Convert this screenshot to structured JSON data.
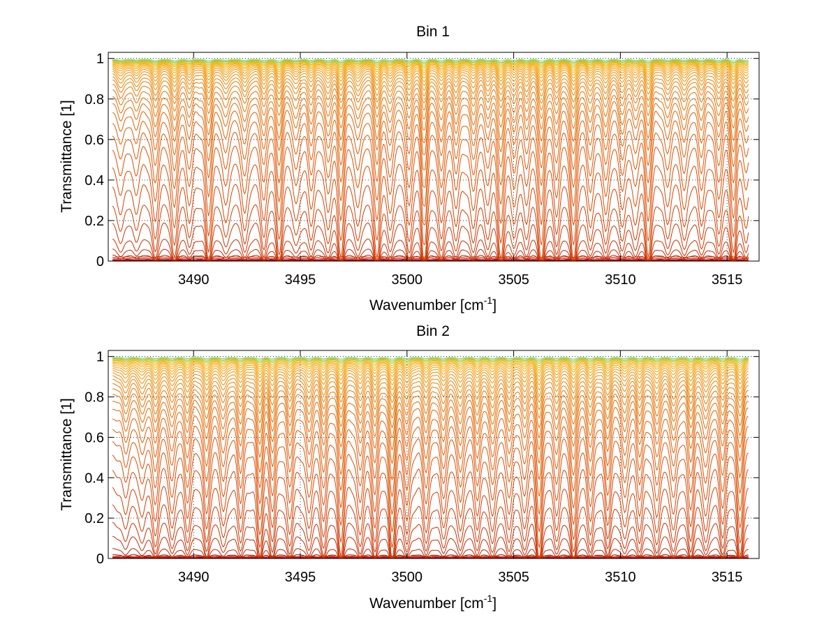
{
  "chart_data": [
    {
      "type": "line",
      "title": "Bin 1",
      "xlabel": "Wavenumber [cm",
      "xlabel_sup": "-1",
      "xlabel_end": "]",
      "ylabel": "Transmittance [1]",
      "xlim": [
        3486,
        3516.5
      ],
      "ylim": [
        0,
        1.03
      ],
      "xticks": [
        3490,
        3495,
        3500,
        3505,
        3510,
        3515
      ],
      "xtick_labels": [
        "3490",
        "3495",
        "3500",
        "3505",
        "3510",
        "3515"
      ],
      "yticks": [
        0,
        0.2,
        0.4,
        0.6,
        0.8,
        1
      ],
      "ytick_labels": [
        "0",
        "0.2",
        "0.4",
        "0.6",
        "0.8",
        "1"
      ],
      "grid": true,
      "series_baselines": [
        0.0,
        0.002,
        0.005,
        0.01,
        0.018,
        0.03,
        0.06,
        0.11,
        0.19,
        0.28,
        0.38,
        0.48,
        0.57,
        0.64,
        0.7,
        0.75,
        0.79,
        0.82,
        0.85,
        0.875,
        0.895,
        0.91,
        0.925,
        0.937,
        0.947,
        0.955,
        0.962,
        0.968,
        0.973,
        0.977,
        0.981,
        0.984,
        0.987,
        0.99,
        0.992,
        0.995
      ],
      "absorption_lines": [
        {
          "x": 3486.6,
          "depth": 0.35
        },
        {
          "x": 3487.3,
          "depth": 0.3
        },
        {
          "x": 3488.2,
          "depth": 0.65
        },
        {
          "x": 3489.1,
          "depth": 0.75
        },
        {
          "x": 3489.8,
          "depth": 0.4
        },
        {
          "x": 3490.7,
          "depth": 0.78
        },
        {
          "x": 3491.5,
          "depth": 0.45
        },
        {
          "x": 3492.4,
          "depth": 0.55
        },
        {
          "x": 3493.3,
          "depth": 0.62
        },
        {
          "x": 3494.0,
          "depth": 0.85
        },
        {
          "x": 3494.8,
          "depth": 0.45
        },
        {
          "x": 3495.5,
          "depth": 0.5
        },
        {
          "x": 3496.3,
          "depth": 0.6
        },
        {
          "x": 3496.9,
          "depth": 0.88
        },
        {
          "x": 3497.7,
          "depth": 0.5
        },
        {
          "x": 3498.6,
          "depth": 0.9
        },
        {
          "x": 3499.2,
          "depth": 0.55
        },
        {
          "x": 3500.1,
          "depth": 0.7
        },
        {
          "x": 3500.8,
          "depth": 0.95
        },
        {
          "x": 3501.6,
          "depth": 0.7
        },
        {
          "x": 3502.3,
          "depth": 0.5
        },
        {
          "x": 3503.1,
          "depth": 0.55
        },
        {
          "x": 3503.8,
          "depth": 0.45
        },
        {
          "x": 3504.4,
          "depth": 0.92
        },
        {
          "x": 3505.0,
          "depth": 0.5
        },
        {
          "x": 3505.6,
          "depth": 0.45
        },
        {
          "x": 3506.3,
          "depth": 0.96
        },
        {
          "x": 3507.0,
          "depth": 0.55
        },
        {
          "x": 3507.8,
          "depth": 0.95
        },
        {
          "x": 3508.6,
          "depth": 0.5
        },
        {
          "x": 3509.3,
          "depth": 0.6
        },
        {
          "x": 3510.1,
          "depth": 0.55
        },
        {
          "x": 3510.7,
          "depth": 0.5
        },
        {
          "x": 3511.3,
          "depth": 0.85
        },
        {
          "x": 3512.2,
          "depth": 0.45
        },
        {
          "x": 3513.0,
          "depth": 0.5
        },
        {
          "x": 3513.8,
          "depth": 0.45
        },
        {
          "x": 3514.6,
          "depth": 0.6
        },
        {
          "x": 3515.3,
          "depth": 0.85
        },
        {
          "x": 3515.9,
          "depth": 0.55
        }
      ]
    },
    {
      "type": "line",
      "title": "Bin 2",
      "xlabel": "Wavenumber [cm",
      "xlabel_sup": "-1",
      "xlabel_end": "]",
      "ylabel": "Transmittance [1]",
      "xlim": [
        3486,
        3516.5
      ],
      "ylim": [
        0,
        1.03
      ],
      "xticks": [
        3490,
        3495,
        3500,
        3505,
        3510,
        3515
      ],
      "xtick_labels": [
        "3490",
        "3495",
        "3500",
        "3505",
        "3510",
        "3515"
      ],
      "yticks": [
        0,
        0.2,
        0.4,
        0.6,
        0.8,
        1
      ],
      "ytick_labels": [
        "0",
        "0.2",
        "0.4",
        "0.6",
        "0.8",
        "1"
      ],
      "grid": true,
      "series_baselines": [
        0.0,
        0.002,
        0.005,
        0.01,
        0.02,
        0.05,
        0.11,
        0.18,
        0.27,
        0.36,
        0.45,
        0.53,
        0.6,
        0.66,
        0.71,
        0.755,
        0.79,
        0.82,
        0.845,
        0.868,
        0.888,
        0.905,
        0.92,
        0.933,
        0.944,
        0.953,
        0.961,
        0.968,
        0.973,
        0.978,
        0.982,
        0.986,
        0.989,
        0.992,
        0.995
      ],
      "absorption_lines": [
        {
          "x": 3486.8,
          "depth": 0.35
        },
        {
          "x": 3487.6,
          "depth": 0.4
        },
        {
          "x": 3488.2,
          "depth": 0.6
        },
        {
          "x": 3489.0,
          "depth": 0.5
        },
        {
          "x": 3489.7,
          "depth": 0.55
        },
        {
          "x": 3490.6,
          "depth": 0.7
        },
        {
          "x": 3491.4,
          "depth": 0.5
        },
        {
          "x": 3492.2,
          "depth": 0.55
        },
        {
          "x": 3493.1,
          "depth": 0.75
        },
        {
          "x": 3493.7,
          "depth": 0.7
        },
        {
          "x": 3494.5,
          "depth": 0.6
        },
        {
          "x": 3495.4,
          "depth": 0.55
        },
        {
          "x": 3496.1,
          "depth": 0.6
        },
        {
          "x": 3496.9,
          "depth": 0.85
        },
        {
          "x": 3497.8,
          "depth": 0.6
        },
        {
          "x": 3498.5,
          "depth": 0.65
        },
        {
          "x": 3499.3,
          "depth": 0.9
        },
        {
          "x": 3500.0,
          "depth": 0.6
        },
        {
          "x": 3500.9,
          "depth": 0.55
        },
        {
          "x": 3501.7,
          "depth": 0.5
        },
        {
          "x": 3502.5,
          "depth": 0.6
        },
        {
          "x": 3503.3,
          "depth": 0.55
        },
        {
          "x": 3504.0,
          "depth": 0.6
        },
        {
          "x": 3504.8,
          "depth": 0.55
        },
        {
          "x": 3505.5,
          "depth": 0.5
        },
        {
          "x": 3506.2,
          "depth": 0.9
        },
        {
          "x": 3507.0,
          "depth": 0.5
        },
        {
          "x": 3507.8,
          "depth": 0.85
        },
        {
          "x": 3508.6,
          "depth": 0.6
        },
        {
          "x": 3509.4,
          "depth": 0.65
        },
        {
          "x": 3510.2,
          "depth": 0.55
        },
        {
          "x": 3510.9,
          "depth": 0.55
        },
        {
          "x": 3511.7,
          "depth": 0.6
        },
        {
          "x": 3512.5,
          "depth": 0.55
        },
        {
          "x": 3513.3,
          "depth": 0.65
        },
        {
          "x": 3514.0,
          "depth": 0.55
        },
        {
          "x": 3514.8,
          "depth": 0.6
        },
        {
          "x": 3515.6,
          "depth": 0.85
        }
      ]
    }
  ],
  "colors": {
    "dark_series": "#b00000",
    "mid_series": "#e05000",
    "light_series": "#f5b000",
    "top_series": "#7fd35a",
    "axis": "#000000",
    "background": "#ffffff"
  }
}
